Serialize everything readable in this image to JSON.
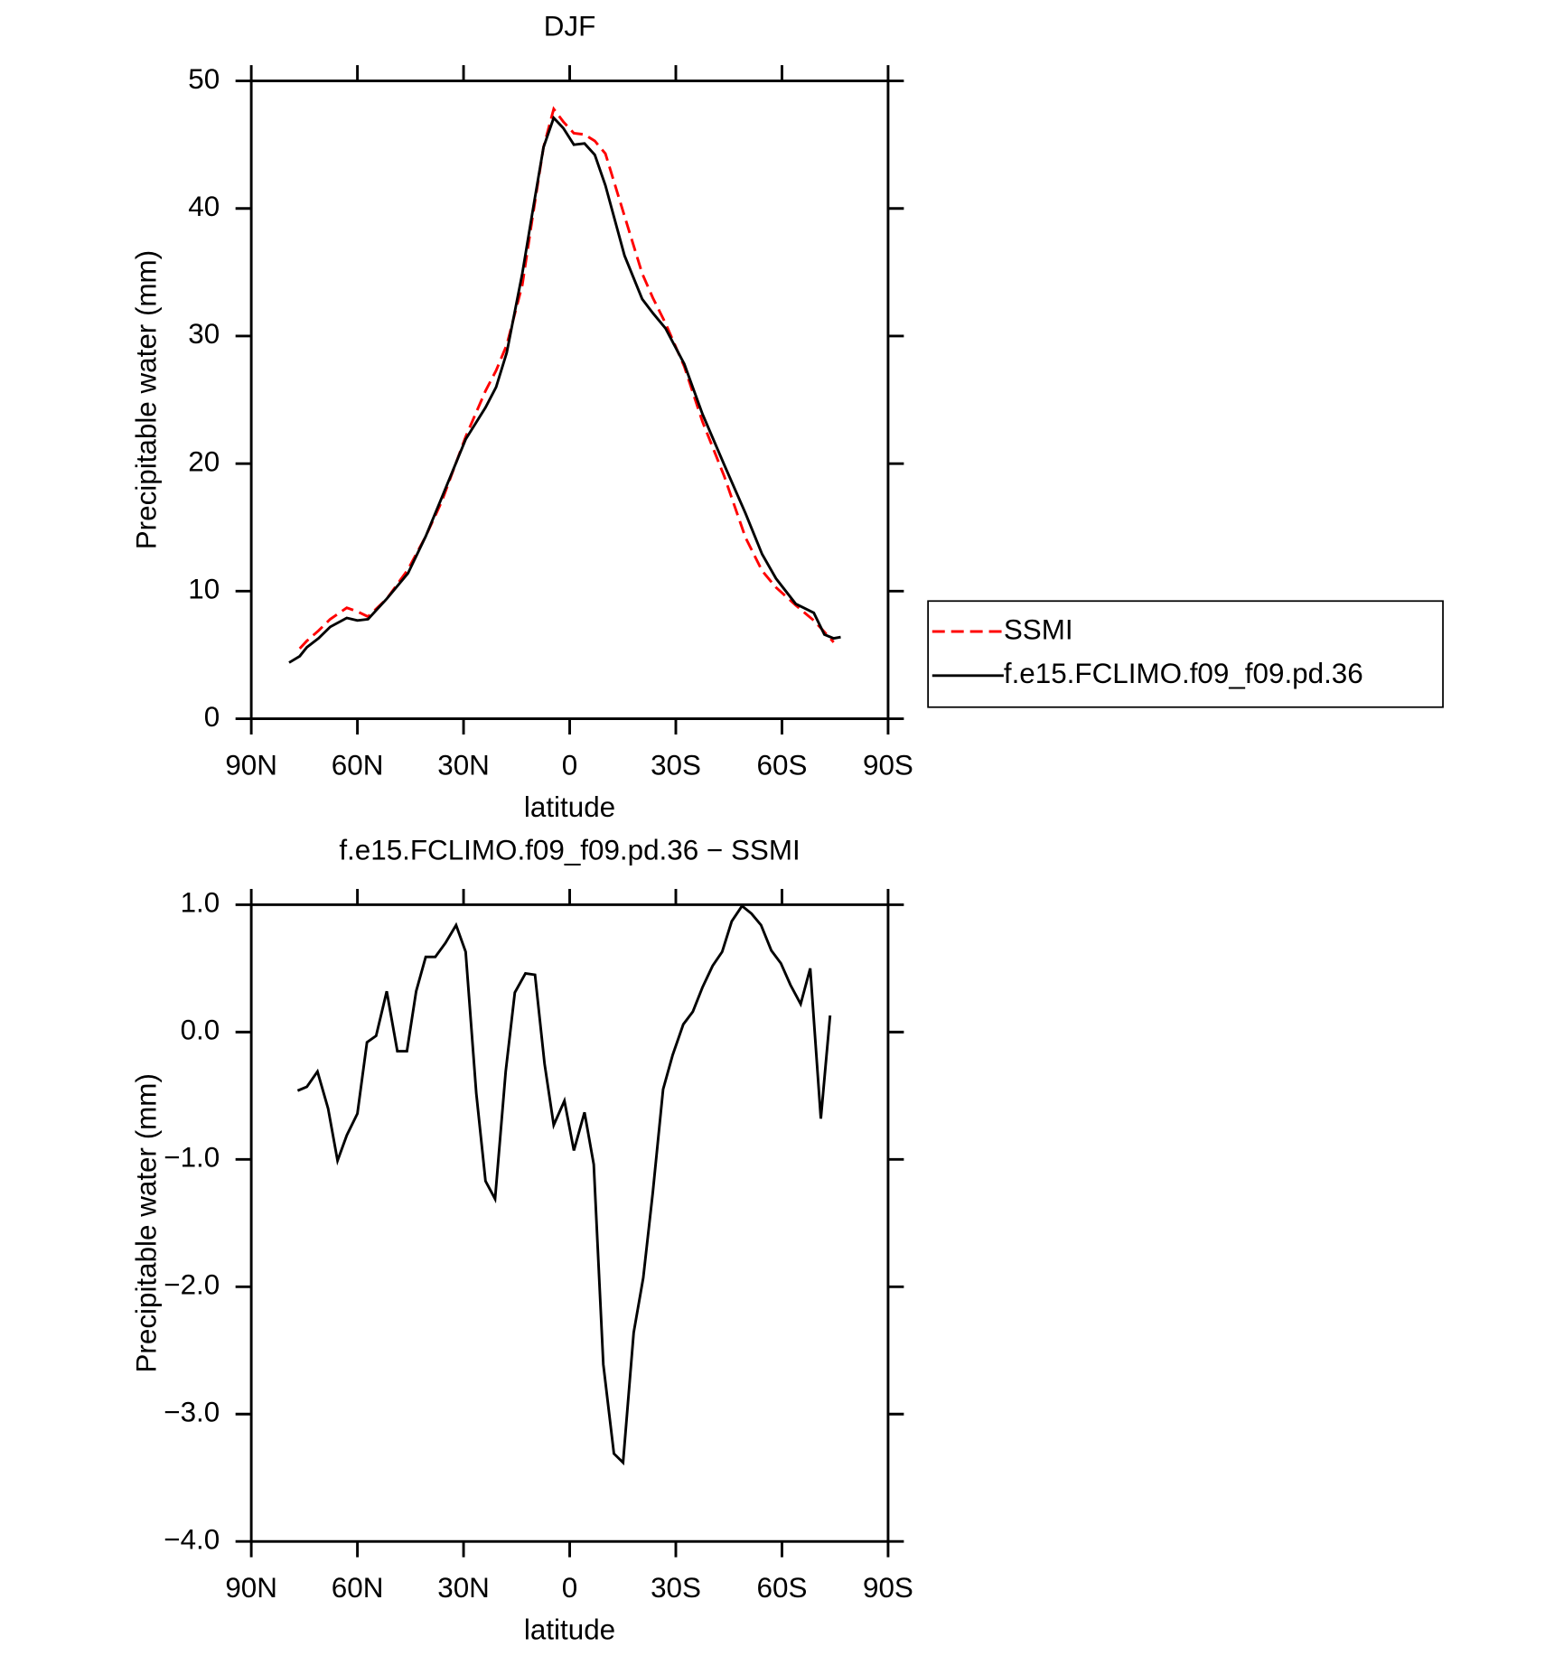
{
  "chart_data": [
    {
      "type": "line",
      "title": "DJF",
      "xlabel": "latitude",
      "ylabel": "Precipitable water (mm)",
      "x": [
        79.3,
        76.3,
        74.3,
        71,
        67.7,
        63,
        60,
        57,
        51.7,
        45.7,
        40.7,
        36.2,
        29.4,
        23.8,
        20.8,
        17.8,
        13.4,
        10.4,
        7.4,
        4.5,
        1.8,
        -1.2,
        -4.2,
        -7.1,
        -10.1,
        -15.5,
        -20.5,
        -23.5,
        -27.1,
        -32.4,
        -37.5,
        -43.7,
        -49.7,
        -54.4,
        -58.3,
        -63.9,
        -69,
        -72,
        -74.6,
        -76.6
      ],
      "series": [
        {
          "name": "SSMI",
          "color": "#ff0000",
          "dash": true,
          "values": [
            null,
            5.5,
            6.1,
            6.9,
            7.8,
            8.7,
            8.4,
            8.0,
            9.4,
            11.7,
            14.3,
            17.0,
            22.1,
            25.7,
            27.3,
            29.3,
            34.0,
            39.5,
            44.8,
            47.8,
            46.8,
            45.9,
            45.8,
            45.3,
            44.3,
            39.4,
            34.9,
            33.0,
            31.0,
            27.6,
            23.3,
            19.0,
            14.2,
            11.6,
            10.3,
            8.9,
            7.7,
            6.8,
            6.0,
            null
          ]
        },
        {
          "name": "f.e15.FCLIMO.f09_f09.pd.36",
          "color": "#000000",
          "dash": false,
          "values": [
            4.4,
            4.9,
            5.6,
            6.3,
            7.2,
            7.9,
            7.7,
            7.8,
            9.4,
            11.4,
            14.3,
            17.3,
            21.9,
            24.4,
            26.0,
            28.7,
            34.9,
            39.9,
            44.8,
            47.1,
            46.3,
            45.0,
            45.1,
            44.2,
            41.8,
            36.3,
            32.9,
            31.8,
            30.6,
            27.8,
            23.9,
            19.9,
            16.1,
            12.9,
            11.0,
            9.0,
            8.3,
            6.6,
            6.3,
            6.4
          ]
        }
      ],
      "xlim": [
        90,
        -90
      ],
      "xticks": [
        {
          "value": 90,
          "label": "90N"
        },
        {
          "value": 60,
          "label": "60N"
        },
        {
          "value": 30,
          "label": "30N"
        },
        0,
        {
          "value": -30,
          "label": "30S"
        },
        {
          "value": -60,
          "label": "60S"
        },
        {
          "value": -90,
          "label": "90S"
        }
      ],
      "ylim": [
        0,
        50
      ],
      "yticks": [
        0,
        10,
        20,
        30,
        40,
        50
      ],
      "legend": "right"
    },
    {
      "type": "line",
      "title": "f.e15.FCLIMO.f09_f09.pd.36 − SSMI",
      "xlabel": "latitude",
      "ylabel": "Precipitable water (mm)",
      "x": [
        76.9,
        74.3,
        71.3,
        68.3,
        65.6,
        63,
        60,
        57.3,
        54.7,
        51.7,
        48.7,
        46,
        43.4,
        40.7,
        38,
        35.1,
        32.1,
        29.4,
        26.4,
        23.8,
        21.1,
        18.1,
        15.5,
        12.5,
        9.8,
        7.1,
        4.5,
        1.5,
        -1.2,
        -4.2,
        -6.8,
        -9.5,
        -12.5,
        -15.1,
        -18.1,
        -20.8,
        -23.5,
        -26.4,
        -29.1,
        -32.1,
        -34.8,
        -37.5,
        -40.4,
        -43.1,
        -45.8,
        -48.7,
        -51.4,
        -54.1,
        -57,
        -59.7,
        -62.4,
        -65.3,
        -68,
        -71,
        -73.6
      ],
      "values": [
        -0.46,
        -0.43,
        -0.31,
        -0.6,
        -1.01,
        -0.81,
        -0.64,
        -0.08,
        -0.03,
        0.32,
        -0.15,
        -0.15,
        0.32,
        0.59,
        0.59,
        0.7,
        0.84,
        0.63,
        -0.48,
        -1.17,
        -1.31,
        -0.31,
        0.31,
        0.46,
        0.45,
        -0.25,
        -0.73,
        -0.54,
        -0.93,
        -0.63,
        -1.04,
        -2.61,
        -3.31,
        -3.38,
        -2.36,
        -1.93,
        -1.26,
        -0.45,
        -0.18,
        0.06,
        0.16,
        0.35,
        0.52,
        0.63,
        0.87,
        0.99,
        0.93,
        0.84,
        0.64,
        0.54,
        0.37,
        0.22,
        0.5,
        -0.68,
        0.13
      ],
      "color": "#000000",
      "xlim": [
        90,
        -90
      ],
      "xticks": [
        {
          "value": 90,
          "label": "90N"
        },
        {
          "value": 60,
          "label": "60N"
        },
        {
          "value": 30,
          "label": "30N"
        },
        0,
        {
          "value": -30,
          "label": "30S"
        },
        {
          "value": -60,
          "label": "60S"
        },
        {
          "value": -90,
          "label": "90S"
        }
      ],
      "ylim": [
        -4,
        1
      ],
      "yticks": [
        {
          "value": -4,
          "label": "−4.0"
        },
        {
          "value": -3,
          "label": "−3.0"
        },
        {
          "value": -2,
          "label": "−2.0"
        },
        {
          "value": -1,
          "label": "−1.0"
        },
        {
          "value": 0,
          "label": "0.0"
        },
        {
          "value": 1,
          "label": "1.0"
        }
      ]
    }
  ]
}
